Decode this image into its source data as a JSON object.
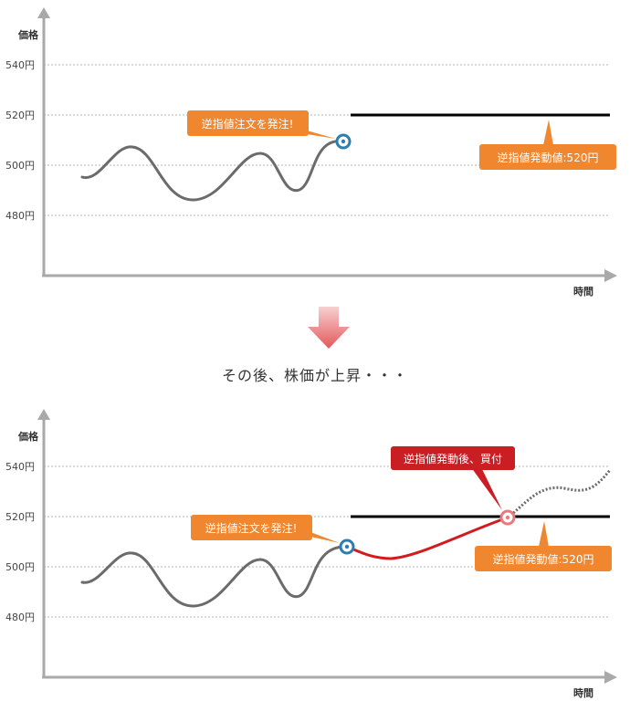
{
  "top": {
    "y_axis_title": "価格",
    "x_axis_title": "時間",
    "y_ticks": [
      "540円",
      "520円",
      "500円",
      "480円"
    ],
    "callout_order": "逆指値注文を発注!",
    "callout_trigger": "逆指値発動値:520円"
  },
  "transition": "その後、株価が上昇・・・",
  "bottom": {
    "y_axis_title": "価格",
    "x_axis_title": "時間",
    "y_ticks": [
      "540円",
      "520円",
      "500円",
      "480円"
    ],
    "callout_order": "逆指値注文を発注!",
    "callout_trigger": "逆指値発動値:520円",
    "callout_buy": "逆指値発動後、買付"
  },
  "colors": {
    "price_line": "#6b6b6b",
    "trigger_line": "#000000",
    "after_line": "#d31b1f",
    "order_callout": "#f0872f",
    "buy_callout": "#c81e24",
    "order_marker": "#2b7fb0",
    "arrow": "#e3585a"
  }
}
